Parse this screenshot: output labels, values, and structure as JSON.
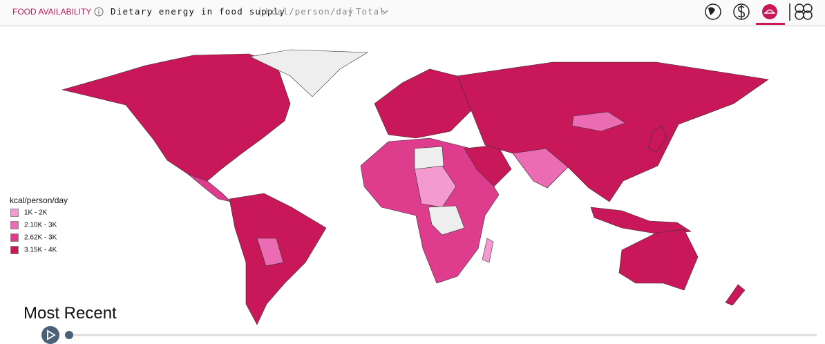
{
  "header": {
    "section": "FOOD AVAILABILITY",
    "indicator": "Dietary energy in food supply",
    "unit": "kcal/person/day",
    "breakdown": "Total"
  },
  "legend": {
    "title": "kcal/person/day",
    "items": [
      {
        "label": "1K - 2K",
        "color": "#f49ad0"
      },
      {
        "label": "2.10K - 3K",
        "color": "#ec6cb4"
      },
      {
        "label": "2.62K - 3K",
        "color": "#dd3d8c"
      },
      {
        "label": "3.15K - 4K",
        "color": "#c9185a"
      }
    ]
  },
  "timeline": {
    "label": "Most Recent"
  }
}
